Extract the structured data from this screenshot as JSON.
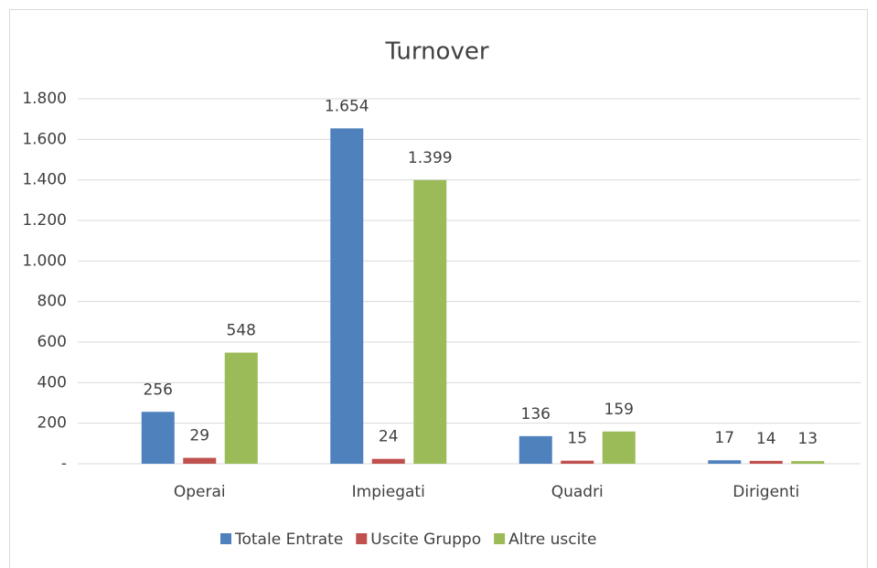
{
  "chart_data": {
    "type": "bar",
    "title": "Turnover",
    "categories": [
      "Operai",
      "Impiegati",
      "Quadri",
      "Dirigenti"
    ],
    "series": [
      {
        "name": "Totale Entrate",
        "color": "#4f81bd",
        "values": [
          256,
          1654,
          136,
          17
        ],
        "value_labels": [
          "256",
          "1.654",
          "136",
          "17"
        ]
      },
      {
        "name": "Uscite Gruppo",
        "color": "#c0504d",
        "values": [
          29,
          24,
          15,
          14
        ],
        "value_labels": [
          "29",
          "24",
          "15",
          "14"
        ]
      },
      {
        "name": "Altre uscite",
        "color": "#9bbb59",
        "values": [
          548,
          1399,
          159,
          13
        ],
        "value_labels": [
          "548",
          "1.399",
          "159",
          "13"
        ]
      }
    ],
    "ylim": [
      0,
      1800
    ],
    "yticks": [
      {
        "value": 0,
        "label": "-"
      },
      200,
      400,
      600,
      800,
      {
        "value": 1000,
        "label": "1.000"
      },
      {
        "value": 1200,
        "label": "1.200"
      },
      {
        "value": 1400,
        "label": "1.400"
      },
      {
        "value": 1600,
        "label": "1.600"
      },
      {
        "value": 1800,
        "label": "1.800"
      }
    ],
    "grid": true,
    "legend": "bottom"
  }
}
